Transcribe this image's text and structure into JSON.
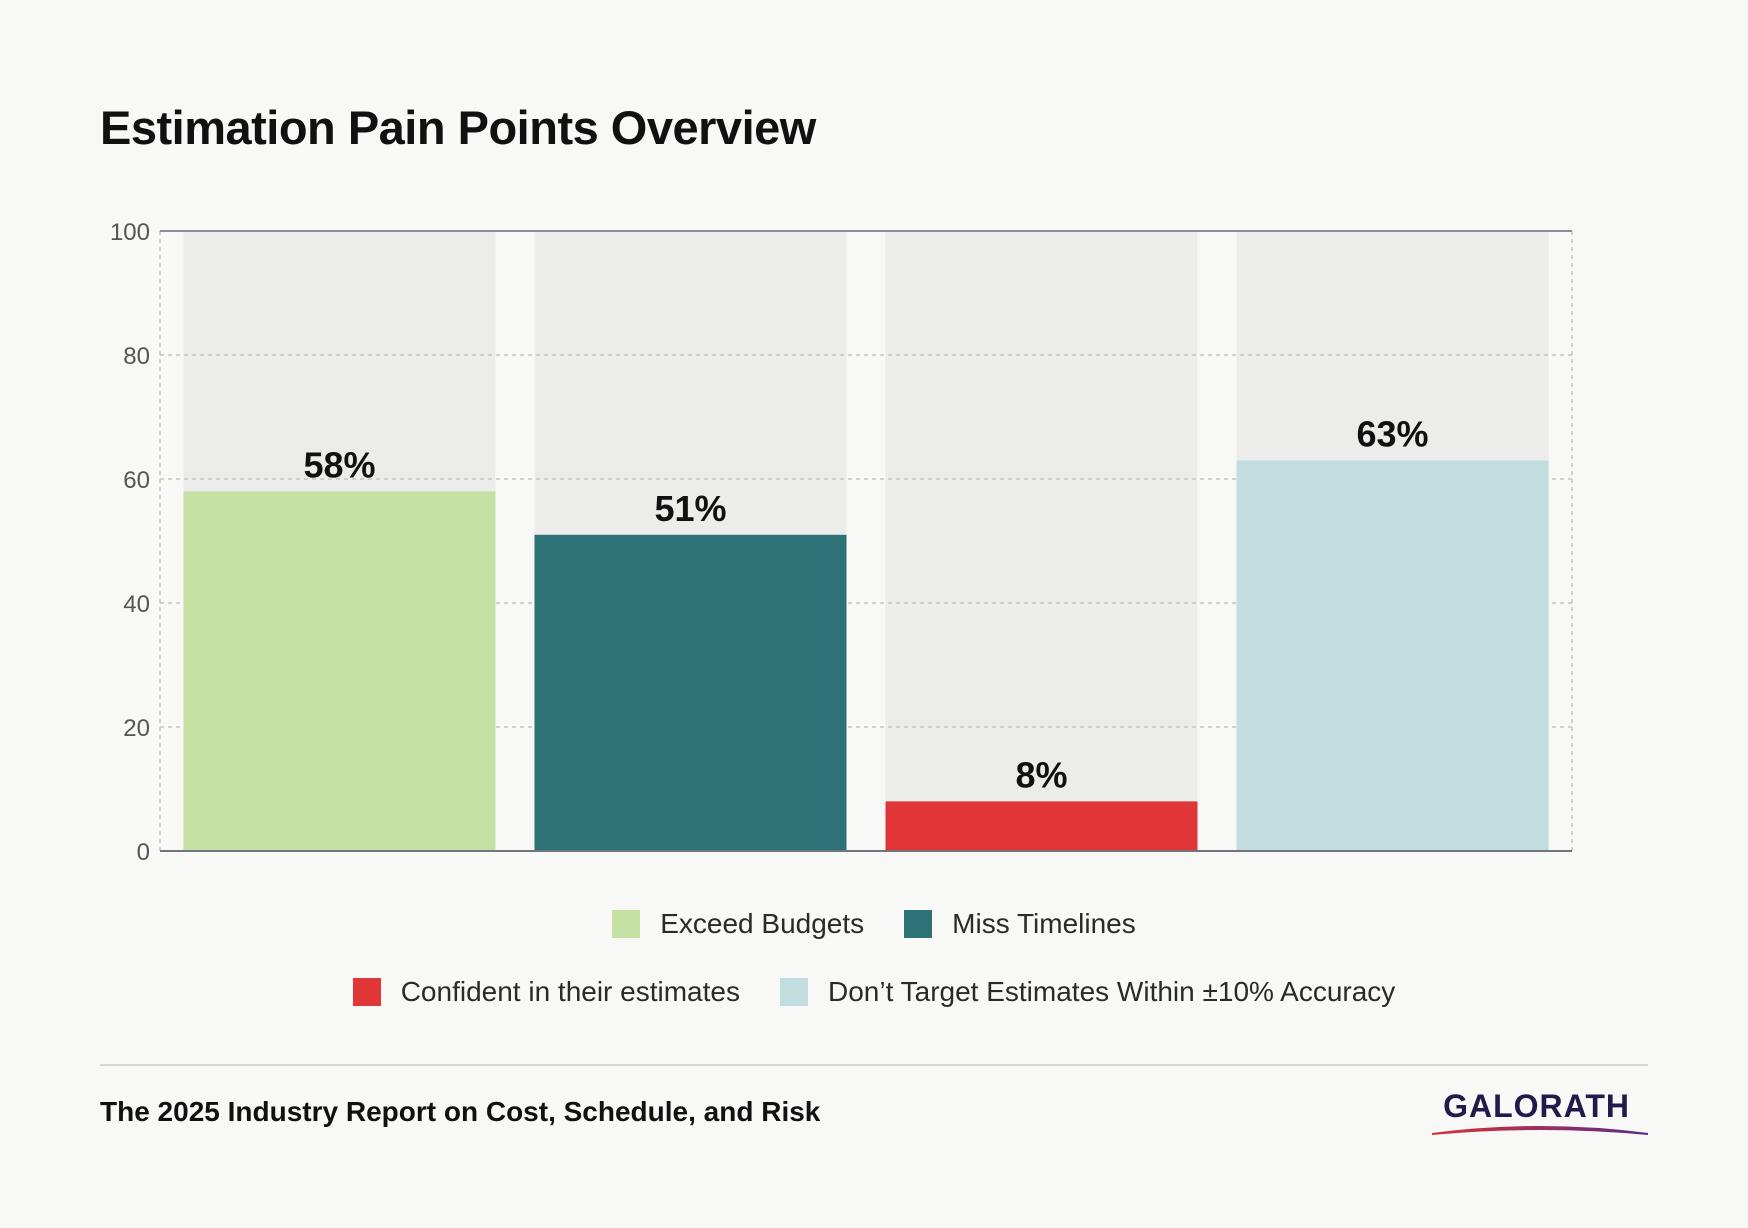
{
  "title": "Estimation Pain Points Overview",
  "chart_data": {
    "type": "bar",
    "categories": [
      "Exceed Budgets",
      "Miss Timelines",
      "Confident in their estimates",
      "Don’t Target Estimates Within ±10% Accuracy"
    ],
    "values": [
      58,
      51,
      8,
      63
    ],
    "value_labels": [
      "58%",
      "51%",
      "8%",
      "63%"
    ],
    "colors": [
      "#c5e1a3",
      "#2e7176",
      "#e03638",
      "#c1dddf"
    ],
    "ylim": [
      0,
      100
    ],
    "yticks": [
      0,
      20,
      40,
      60,
      80,
      100
    ],
    "grid": true,
    "legend_position": "bottom"
  },
  "legend": [
    {
      "label": "Exceed Budgets",
      "color": "#c5e1a3"
    },
    {
      "label": "Miss Timelines",
      "color": "#2e7176"
    },
    {
      "label": "Confident in their estimates",
      "color": "#e03638"
    },
    {
      "label": "Don’t Target Estimates Within ±10% Accuracy",
      "color": "#c1dddf"
    }
  ],
  "footer": {
    "source": "The 2025 Industry Report on Cost, Schedule, and Risk",
    "logo_text": "GALORATH"
  }
}
